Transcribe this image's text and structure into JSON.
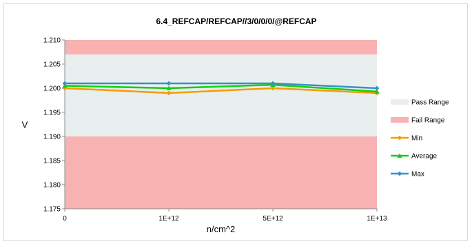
{
  "chart_data": {
    "type": "line",
    "title": "6.4_REFCAP/REFCAP//3/0/0/0/@REFCAP",
    "xlabel": "n/cm^2",
    "ylabel": "V",
    "categories": [
      "0",
      "1E+12",
      "5E+12",
      "1E+13"
    ],
    "ylim": [
      1.175,
      1.21
    ],
    "yticks": [
      "1.175",
      "1.180",
      "1.185",
      "1.190",
      "1.195",
      "1.200",
      "1.205",
      "1.210"
    ],
    "bands": [
      {
        "name": "Pass Range",
        "from": 1.19,
        "to": 1.207,
        "color": "#e9eeee"
      },
      {
        "name": "Fail Range",
        "from": 1.175,
        "to": 1.19,
        "color": "#f9b2b2"
      },
      {
        "name": "Fail Range",
        "from": 1.207,
        "to": 1.21,
        "color": "#f9b2b2"
      }
    ],
    "series": [
      {
        "name": "Min",
        "values": [
          1.2,
          1.199,
          1.2,
          1.199
        ],
        "color": "#f59b00",
        "marker": "diamond"
      },
      {
        "name": "Average",
        "values": [
          1.2005,
          1.2,
          1.2007,
          1.1993
        ],
        "color": "#10d010",
        "marker": "triangle"
      },
      {
        "name": "Max",
        "values": [
          1.201,
          1.201,
          1.201,
          1.2
        ],
        "color": "#3b8fc8",
        "marker": "diamond"
      }
    ],
    "legend": {
      "position": "right",
      "entries": [
        "Pass Range",
        "Fail Range",
        "Min",
        "Average",
        "Max"
      ]
    },
    "grid": false
  }
}
